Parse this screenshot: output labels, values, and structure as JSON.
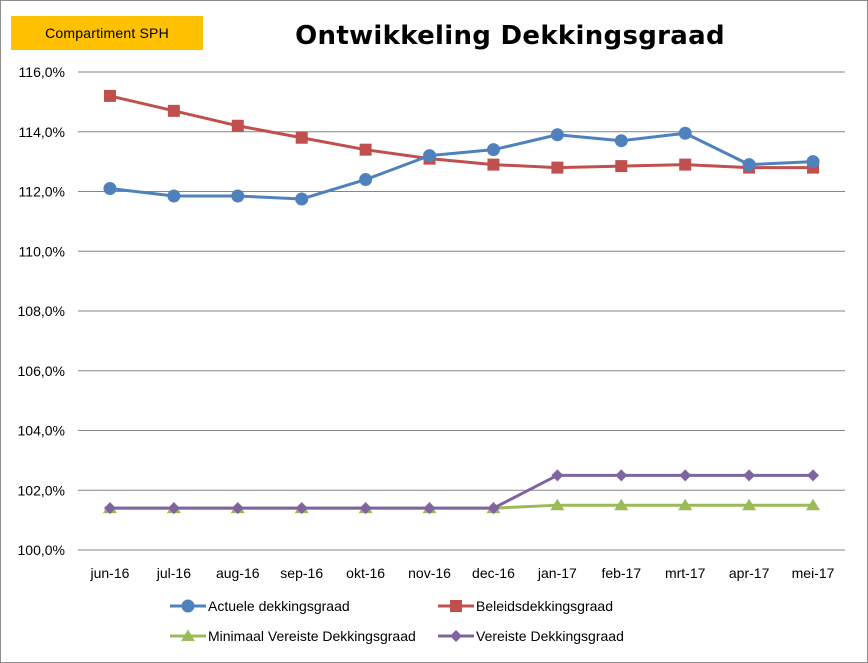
{
  "badge": {
    "label": "Compartiment  SPH",
    "color": "#ffc000"
  },
  "chart_data": {
    "type": "line",
    "title": "Ontwikkeling  Dekkingsgraad",
    "xlabel": "",
    "ylabel": "",
    "categories": [
      "jun-16",
      "jul-16",
      "aug-16",
      "sep-16",
      "okt-16",
      "nov-16",
      "dec-16",
      "jan-17",
      "feb-17",
      "mrt-17",
      "apr-17",
      "mei-17"
    ],
    "ylim": [
      100.0,
      116.0
    ],
    "yticks": [
      100,
      102,
      104,
      106,
      108,
      110,
      112,
      114,
      116
    ],
    "ytick_labels": [
      "100,0%",
      "102,0%",
      "104,0%",
      "106,0%",
      "108,0%",
      "110,0%",
      "112,0%",
      "114,0%",
      "116,0%"
    ],
    "grid": true,
    "legend_position": "bottom",
    "series": [
      {
        "name": "Actuele dekkingsgraad",
        "color": "#4f81bd",
        "marker": "circle",
        "values": [
          112.1,
          111.85,
          111.85,
          111.75,
          112.4,
          113.2,
          113.4,
          113.9,
          113.7,
          113.95,
          112.9,
          113.0
        ]
      },
      {
        "name": "Beleidsdekkingsgraad",
        "color": "#c0504d",
        "marker": "square",
        "values": [
          115.2,
          114.7,
          114.2,
          113.8,
          113.4,
          113.1,
          112.9,
          112.8,
          112.85,
          112.9,
          112.8,
          112.8
        ]
      },
      {
        "name": "Minimaal Vereiste Dekkingsgraad",
        "color": "#9bbb59",
        "marker": "triangle",
        "values": [
          101.4,
          101.4,
          101.4,
          101.4,
          101.4,
          101.4,
          101.4,
          101.5,
          101.5,
          101.5,
          101.5,
          101.5
        ]
      },
      {
        "name": "Vereiste Dekkingsgraad",
        "color": "#8064a2",
        "marker": "diamond",
        "values": [
          101.4,
          101.4,
          101.4,
          101.4,
          101.4,
          101.4,
          101.4,
          102.5,
          102.5,
          102.5,
          102.5,
          102.5
        ]
      }
    ]
  }
}
